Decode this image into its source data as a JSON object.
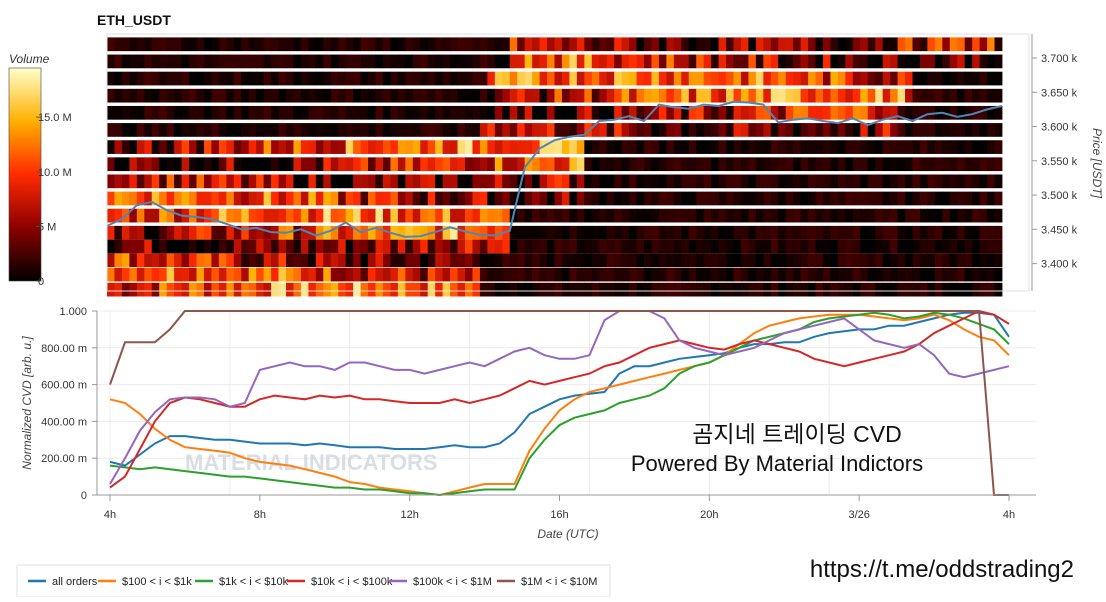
{
  "chart_data": [
    {
      "type": "heatmap",
      "title": "ETH_USDT",
      "ylabel": "Price [USDT]",
      "ylim": [
        3360,
        3735
      ],
      "y_ticks": [
        3400,
        3450,
        3500,
        3550,
        3600,
        3650,
        3700
      ],
      "y_tick_labels": [
        "3.400 k",
        "3.450 k",
        "3.500 k",
        "3.550 k",
        "3.600 k",
        "3.650 k",
        "3.700 k"
      ],
      "colorbar": {
        "title": "Volume",
        "range": [
          0,
          19500000
        ],
        "ticks": [
          0,
          5000000,
          10000000,
          15000000
        ],
        "tick_labels": [
          "0",
          "5 M",
          "10.0 M",
          "15.0 M"
        ]
      },
      "price_bands": [
        3362,
        3384,
        3405,
        3425,
        3445,
        3470,
        3495,
        3520,
        3545,
        3570,
        3595,
        3620,
        3645,
        3670,
        3695,
        3720
      ],
      "price_bin_height": 20,
      "band_activity_hours": [
        [
          0,
          12.6
        ],
        [
          0,
          12.6
        ],
        [
          0,
          12.6
        ],
        [
          0,
          13.6
        ],
        [
          0,
          13.6
        ],
        [
          0,
          13.6
        ],
        [
          0,
          16
        ],
        [
          0,
          16
        ],
        [
          0,
          16
        ],
        [
          0,
          16
        ],
        [
          12.6,
          26.5
        ],
        [
          12.6,
          26.5
        ],
        [
          12.8,
          27
        ],
        [
          12.8,
          27
        ],
        [
          13.4,
          29.8
        ],
        [
          13.4,
          29.8
        ]
      ],
      "price_line": {
        "x_hours": [
          0,
          0.5,
          1,
          1.5,
          2,
          2.5,
          3,
          3.5,
          4,
          4.5,
          5,
          5.5,
          6,
          6.5,
          7,
          7.5,
          8,
          8.5,
          9,
          9.5,
          10,
          10.5,
          11,
          11.5,
          12,
          12.5,
          13,
          13.5,
          14,
          14.5,
          15,
          15.5,
          16,
          16.5,
          17,
          17.5,
          18,
          18.5,
          19,
          19.5,
          20,
          20.5,
          21,
          21.5,
          22,
          22.5,
          23,
          23.5,
          24,
          24.5,
          25,
          25.5,
          26,
          26.5,
          27,
          27.5,
          28,
          28.5,
          29,
          29.5,
          30
        ],
        "price": [
          3455,
          3465,
          3485,
          3490,
          3478,
          3470,
          3468,
          3465,
          3458,
          3450,
          3452,
          3446,
          3445,
          3450,
          3441,
          3448,
          3460,
          3446,
          3452,
          3445,
          3439,
          3440,
          3446,
          3453,
          3447,
          3442,
          3441,
          3448,
          3540,
          3568,
          3580,
          3585,
          3588,
          3608,
          3610,
          3615,
          3608,
          3632,
          3628,
          3626,
          3632,
          3630,
          3636,
          3635,
          3632,
          3606,
          3610,
          3612,
          3608,
          3605,
          3612,
          3602,
          3610,
          3615,
          3608,
          3618,
          3620,
          3614,
          3618,
          3625,
          3630
        ]
      }
    },
    {
      "type": "line",
      "xlabel": "Date (UTC)",
      "ylabel": "Normalized CVD [arb. u.]",
      "ylim": [
        0,
        1
      ],
      "y_ticks": [
        0,
        0.2,
        0.4,
        0.6,
        0.8,
        1.0
      ],
      "y_tick_labels": [
        "0",
        "200.00 m",
        "400.00 m",
        "600.00 m",
        "800.00 m",
        "1.000"
      ],
      "x_ticks": [
        0,
        4,
        8,
        12,
        16,
        20,
        24,
        28
      ],
      "x_tick_labels": [
        "4h",
        "8h",
        "12h",
        "16h",
        "20h",
        "3/26",
        "4h",
        "4h"
      ],
      "x": [
        0,
        0.5,
        1,
        1.5,
        2,
        2.5,
        3,
        3.5,
        4,
        4.5,
        5,
        5.5,
        6,
        6.5,
        7,
        7.5,
        8,
        8.5,
        9,
        9.5,
        10,
        10.5,
        11,
        11.5,
        12,
        12.5,
        13,
        13.5,
        14,
        14.5,
        15,
        15.5,
        16,
        16.5,
        17,
        17.5,
        18,
        18.5,
        19,
        19.5,
        20,
        20.5,
        21,
        21.5,
        22,
        22.5,
        23,
        23.5,
        24,
        24.5,
        25,
        25.5,
        26,
        26.5,
        27,
        27.5,
        28,
        28.5,
        29,
        29.5,
        30
      ],
      "series": [
        {
          "name": "all orders",
          "color": "#1f77b4",
          "values": [
            0.18,
            0.16,
            0.22,
            0.28,
            0.32,
            0.32,
            0.31,
            0.3,
            0.3,
            0.29,
            0.28,
            0.28,
            0.28,
            0.27,
            0.28,
            0.27,
            0.26,
            0.26,
            0.26,
            0.25,
            0.25,
            0.25,
            0.26,
            0.27,
            0.26,
            0.26,
            0.28,
            0.34,
            0.44,
            0.48,
            0.52,
            0.54,
            0.55,
            0.56,
            0.66,
            0.7,
            0.7,
            0.72,
            0.74,
            0.75,
            0.76,
            0.77,
            0.8,
            0.82,
            0.82,
            0.83,
            0.83,
            0.86,
            0.88,
            0.89,
            0.9,
            0.9,
            0.92,
            0.92,
            0.94,
            0.96,
            0.98,
            0.99,
            0.99,
            0.98,
            0.86
          ]
        },
        {
          "name": "$100 < i < $1k",
          "color": "#ff7f0e",
          "values": [
            0.52,
            0.5,
            0.44,
            0.36,
            0.3,
            0.26,
            0.25,
            0.24,
            0.23,
            0.2,
            0.18,
            0.17,
            0.16,
            0.14,
            0.12,
            0.1,
            0.07,
            0.06,
            0.04,
            0.03,
            0.02,
            0.01,
            0.0,
            0.02,
            0.04,
            0.06,
            0.06,
            0.06,
            0.24,
            0.36,
            0.46,
            0.52,
            0.56,
            0.58,
            0.6,
            0.62,
            0.64,
            0.66,
            0.68,
            0.7,
            0.72,
            0.76,
            0.82,
            0.88,
            0.92,
            0.94,
            0.96,
            0.97,
            0.98,
            0.98,
            0.98,
            0.97,
            0.96,
            0.95,
            0.96,
            0.98,
            0.95,
            0.9,
            0.86,
            0.84,
            0.76
          ]
        },
        {
          "name": "$1k < i < $10k",
          "color": "#2ca02c",
          "values": [
            0.16,
            0.15,
            0.14,
            0.15,
            0.14,
            0.13,
            0.12,
            0.11,
            0.1,
            0.1,
            0.09,
            0.08,
            0.07,
            0.06,
            0.05,
            0.04,
            0.04,
            0.03,
            0.03,
            0.02,
            0.01,
            0.01,
            0.0,
            0.01,
            0.02,
            0.03,
            0.03,
            0.03,
            0.2,
            0.3,
            0.38,
            0.42,
            0.44,
            0.46,
            0.5,
            0.52,
            0.54,
            0.58,
            0.66,
            0.7,
            0.72,
            0.76,
            0.8,
            0.84,
            0.86,
            0.88,
            0.9,
            0.94,
            0.96,
            0.97,
            0.98,
            0.99,
            0.98,
            0.96,
            0.97,
            0.99,
            0.98,
            0.96,
            0.93,
            0.9,
            0.82
          ]
        },
        {
          "name": "$10k < i < $100k",
          "color": "#d62728",
          "values": [
            0.04,
            0.1,
            0.25,
            0.4,
            0.5,
            0.53,
            0.52,
            0.5,
            0.48,
            0.48,
            0.52,
            0.54,
            0.53,
            0.52,
            0.54,
            0.53,
            0.54,
            0.52,
            0.52,
            0.51,
            0.5,
            0.5,
            0.5,
            0.52,
            0.5,
            0.52,
            0.54,
            0.58,
            0.62,
            0.6,
            0.62,
            0.64,
            0.66,
            0.7,
            0.72,
            0.76,
            0.8,
            0.82,
            0.84,
            0.82,
            0.8,
            0.79,
            0.82,
            0.84,
            0.82,
            0.8,
            0.78,
            0.74,
            0.72,
            0.7,
            0.72,
            0.74,
            0.76,
            0.78,
            0.82,
            0.88,
            0.92,
            0.96,
            1.0,
            0.98,
            0.93
          ]
        },
        {
          "name": "$100k < i < $1M",
          "color": "#9467bd",
          "values": [
            0.06,
            0.2,
            0.35,
            0.45,
            0.52,
            0.53,
            0.53,
            0.52,
            0.48,
            0.5,
            0.68,
            0.7,
            0.72,
            0.7,
            0.7,
            0.68,
            0.72,
            0.72,
            0.7,
            0.68,
            0.68,
            0.66,
            0.68,
            0.7,
            0.72,
            0.7,
            0.74,
            0.78,
            0.8,
            0.76,
            0.74,
            0.74,
            0.76,
            0.95,
            1.0,
            1.0,
            1.0,
            0.96,
            0.84,
            0.8,
            0.78,
            0.76,
            0.78,
            0.8,
            0.84,
            0.88,
            0.9,
            0.92,
            0.94,
            0.96,
            0.9,
            0.84,
            0.82,
            0.8,
            0.82,
            0.76,
            0.66,
            0.64,
            0.66,
            0.68,
            0.7
          ]
        },
        {
          "name": "$1M < i < $10M",
          "color": "#8c564b",
          "values": [
            0.6,
            0.83,
            0.83,
            0.83,
            0.9,
            1.0,
            1.0,
            1.0,
            1.0,
            1.0,
            1.0,
            1.0,
            1.0,
            1.0,
            1.0,
            1.0,
            1.0,
            1.0,
            1.0,
            1.0,
            1.0,
            1.0,
            1.0,
            1.0,
            1.0,
            1.0,
            1.0,
            1.0,
            1.0,
            1.0,
            1.0,
            1.0,
            1.0,
            1.0,
            1.0,
            1.0,
            1.0,
            1.0,
            1.0,
            1.0,
            1.0,
            1.0,
            1.0,
            1.0,
            1.0,
            1.0,
            1.0,
            1.0,
            1.0,
            1.0,
            1.0,
            1.0,
            1.0,
            1.0,
            1.0,
            1.0,
            1.0,
            1.0,
            1.0,
            0.0,
            0.0
          ]
        }
      ],
      "annotations": [
        "곰지네 트레이딩 CVD",
        "Powered By Material Indictors"
      ],
      "watermark": "MATERIAL INDICATORS",
      "legend": "bottom-left",
      "grid": true
    }
  ],
  "footer_link": "https://t.me/oddstrading2"
}
